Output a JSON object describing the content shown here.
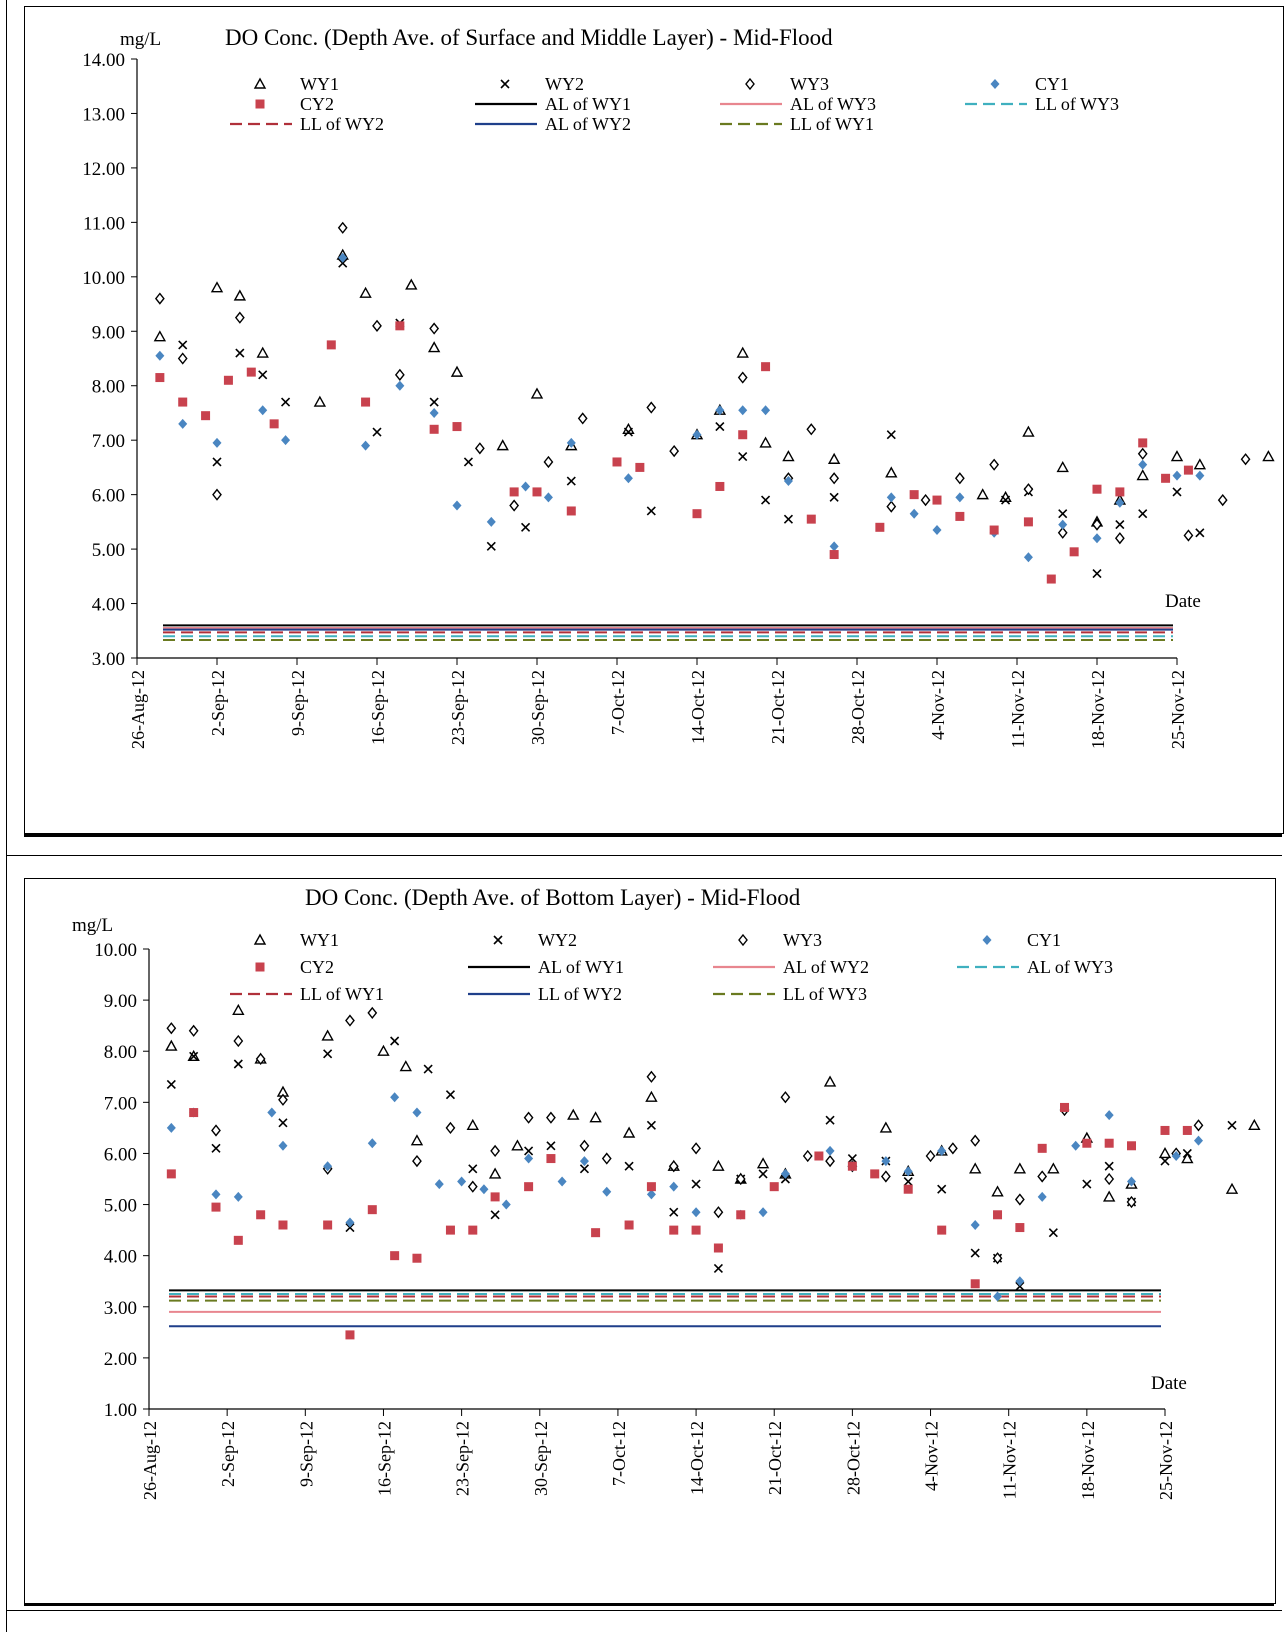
{
  "page": {
    "colors": {
      "WY1": "#000000",
      "WY2": "#000000",
      "WY3": "#000000",
      "CY1": "#4a86c1",
      "CY2": "#c8424e",
      "AL_black": "#000000",
      "AL_pink": "#e8868f",
      "AL_cyan": "#3fb0bf",
      "LL_red": "#b0303a",
      "LL_navy": "#1f3f8a",
      "LL_olive": "#6a7a20"
    }
  },
  "chart_data": [
    {
      "type": "scatter",
      "title": "DO Conc. (Depth Ave. of Surface and Middle Layer) - Mid-Flood",
      "ylabel": "mg/L",
      "xlabel": "Date",
      "ylim": [
        3,
        14
      ],
      "yticks": [
        "3.00",
        "4.00",
        "5.00",
        "6.00",
        "7.00",
        "8.00",
        "9.00",
        "10.00",
        "11.00",
        "12.00",
        "13.00",
        "14.00"
      ],
      "x_range_days": [
        0,
        91
      ],
      "xticks": [
        "26-Aug-12",
        "2-Sep-12",
        "9-Sep-12",
        "16-Sep-12",
        "23-Sep-12",
        "30-Sep-12",
        "7-Oct-12",
        "14-Oct-12",
        "21-Oct-12",
        "28-Oct-12",
        "4-Nov-12",
        "11-Nov-12",
        "18-Nov-12",
        "25-Nov-12"
      ],
      "legend_placement": "top",
      "legend": [
        {
          "label": "WY1",
          "marker": "triangle"
        },
        {
          "label": "WY2",
          "marker": "x"
        },
        {
          "label": "WY3",
          "marker": "diamond-open"
        },
        {
          "label": "CY1",
          "marker": "diamond-filled"
        },
        {
          "label": "CY2",
          "marker": "square"
        },
        {
          "label": "AL of WY1",
          "line": "AL_black",
          "dash": "solid"
        },
        {
          "label": "AL of WY3",
          "line": "AL_pink",
          "dash": "solid"
        },
        {
          "label": "LL of WY3",
          "line": "AL_cyan",
          "dash": "dash"
        },
        {
          "label": "LL of WY2",
          "line": "LL_red",
          "dash": "dash"
        },
        {
          "label": "AL of WY2",
          "line": "LL_navy",
          "dash": "solid"
        },
        {
          "label": "LL of WY1",
          "line": "LL_olive",
          "dash": "dash"
        }
      ],
      "lines": [
        {
          "name": "AL of WY1",
          "value": 3.6,
          "color": "AL_black",
          "dash": "solid"
        },
        {
          "name": "AL of WY3",
          "value": 3.55,
          "color": "AL_pink",
          "dash": "solid"
        },
        {
          "name": "AL of WY2",
          "value": 3.52,
          "color": "LL_navy",
          "dash": "solid"
        },
        {
          "name": "LL of WY2",
          "value": 3.47,
          "color": "LL_red",
          "dash": "dash"
        },
        {
          "name": "LL of WY3",
          "value": 3.4,
          "color": "AL_cyan",
          "dash": "dash"
        },
        {
          "name": "LL of WY1",
          "value": 3.33,
          "color": "LL_olive",
          "dash": "dash"
        }
      ],
      "series": [
        {
          "name": "WY1",
          "marker": "triangle",
          "x": [
            2,
            7,
            9,
            11,
            16,
            18,
            20,
            24,
            26,
            28,
            32,
            35,
            38,
            43,
            49,
            51,
            53,
            55,
            57,
            61,
            66,
            74,
            76,
            78,
            81,
            84,
            86,
            88,
            91,
            93,
            99
          ],
          "y": [
            8.9,
            9.8,
            9.65,
            8.6,
            7.7,
            10.4,
            9.7,
            9.85,
            8.7,
            8.25,
            6.9,
            7.85,
            6.9,
            7.2,
            7.1,
            7.55,
            8.6,
            6.95,
            6.7,
            6.65,
            6.4,
            6.0,
            5.95,
            7.15,
            6.5,
            5.5,
            5.9,
            6.35,
            6.7,
            6.55,
            6.7
          ]
        },
        {
          "name": "WY2",
          "marker": "x",
          "x": [
            4,
            7,
            9,
            11,
            13,
            18,
            21,
            23,
            26,
            29,
            31,
            34,
            38,
            43,
            45,
            51,
            53,
            55,
            57,
            61,
            66,
            76,
            78,
            81,
            84,
            86,
            88,
            91,
            93
          ],
          "y": [
            8.75,
            6.6,
            8.6,
            8.2,
            7.7,
            10.25,
            7.15,
            9.15,
            7.7,
            6.6,
            5.05,
            5.4,
            6.25,
            7.15,
            5.7,
            7.25,
            6.7,
            5.9,
            5.55,
            5.95,
            7.1,
            5.9,
            6.05,
            5.65,
            4.55,
            5.45,
            5.65,
            6.05,
            5.3
          ]
        },
        {
          "name": "WY3",
          "marker": "diamond-open",
          "x": [
            2,
            4,
            7,
            9,
            18,
            21,
            23,
            26,
            30,
            33,
            36,
            39,
            45,
            47,
            53,
            57,
            59,
            61,
            66,
            69,
            72,
            75,
            78,
            81,
            84,
            86,
            88,
            92,
            95,
            97
          ],
          "y": [
            9.6,
            8.5,
            6.0,
            9.25,
            10.9,
            9.1,
            8.2,
            9.05,
            6.85,
            5.8,
            6.6,
            7.4,
            7.6,
            6.8,
            8.15,
            6.3,
            7.2,
            6.3,
            5.78,
            5.9,
            6.3,
            6.55,
            6.1,
            5.3,
            5.45,
            5.2,
            6.75,
            5.25,
            5.9,
            6.65
          ]
        },
        {
          "name": "CY1",
          "marker": "diamond-filled",
          "x": [
            2,
            4,
            7,
            11,
            13,
            18,
            20,
            23,
            26,
            28,
            31,
            34,
            36,
            38,
            43,
            49,
            51,
            53,
            55,
            57,
            61,
            66,
            68,
            70,
            72,
            75,
            78,
            81,
            84,
            86,
            88,
            91,
            93
          ],
          "y": [
            8.55,
            7.3,
            6.95,
            7.55,
            7.0,
            10.35,
            6.9,
            8.0,
            7.5,
            5.8,
            5.5,
            6.15,
            5.95,
            6.95,
            6.3,
            7.1,
            7.55,
            7.55,
            7.55,
            6.25,
            5.05,
            5.95,
            5.65,
            5.35,
            5.95,
            5.3,
            4.85,
            5.45,
            5.2,
            5.85,
            6.55,
            6.35,
            6.35
          ]
        },
        {
          "name": "CY2",
          "marker": "square",
          "x": [
            2,
            4,
            6,
            8,
            10,
            12,
            17,
            20,
            23,
            26,
            28,
            33,
            35,
            38,
            42,
            44,
            49,
            51,
            53,
            55,
            59,
            61,
            65,
            68,
            70,
            72,
            75,
            78,
            80,
            82,
            84,
            86,
            88,
            90,
            92
          ],
          "y": [
            8.15,
            7.7,
            7.45,
            8.1,
            8.25,
            7.3,
            8.75,
            7.7,
            9.1,
            7.2,
            7.25,
            6.05,
            6.05,
            5.7,
            6.6,
            6.5,
            5.65,
            6.15,
            7.1,
            8.35,
            5.55,
            4.9,
            5.4,
            6.0,
            5.9,
            5.6,
            5.35,
            5.5,
            4.45,
            4.95,
            6.1,
            6.05,
            6.95,
            6.3,
            6.45
          ]
        }
      ]
    },
    {
      "type": "scatter",
      "title": "DO Conc. (Depth Ave. of Bottom Layer) - Mid-Flood",
      "ylabel": "mg/L",
      "xlabel": "Date",
      "ylim": [
        1,
        10
      ],
      "yticks": [
        "1.00",
        "2.00",
        "3.00",
        "4.00",
        "5.00",
        "6.00",
        "7.00",
        "8.00",
        "9.00",
        "10.00"
      ],
      "x_range_days": [
        0,
        91
      ],
      "xticks": [
        "26-Aug-12",
        "2-Sep-12",
        "9-Sep-12",
        "16-Sep-12",
        "23-Sep-12",
        "30-Sep-12",
        "7-Oct-12",
        "14-Oct-12",
        "21-Oct-12",
        "28-Oct-12",
        "4-Nov-12",
        "11-Nov-12",
        "18-Nov-12",
        "25-Nov-12"
      ],
      "legend_placement": "top",
      "legend": [
        {
          "label": "WY1",
          "marker": "triangle"
        },
        {
          "label": "WY2",
          "marker": "x"
        },
        {
          "label": "WY3",
          "marker": "diamond-open"
        },
        {
          "label": "CY1",
          "marker": "diamond-filled"
        },
        {
          "label": "CY2",
          "marker": "square"
        },
        {
          "label": "AL of WY1",
          "line": "AL_black",
          "dash": "solid"
        },
        {
          "label": "AL of WY2",
          "line": "AL_pink",
          "dash": "solid"
        },
        {
          "label": "AL of WY3",
          "line": "AL_cyan",
          "dash": "dash"
        },
        {
          "label": "LL of WY1",
          "line": "LL_red",
          "dash": "dash"
        },
        {
          "label": "LL of WY2",
          "line": "LL_navy",
          "dash": "solid"
        },
        {
          "label": "LL of WY3",
          "line": "LL_olive",
          "dash": "dash"
        }
      ],
      "lines": [
        {
          "name": "AL of WY1",
          "value": 3.32,
          "color": "AL_black",
          "dash": "solid"
        },
        {
          "name": "AL of WY3",
          "value": 3.25,
          "color": "AL_cyan",
          "dash": "dash"
        },
        {
          "name": "LL of WY1",
          "value": 3.2,
          "color": "LL_red",
          "dash": "dash"
        },
        {
          "name": "LL of WY3",
          "value": 3.12,
          "color": "LL_olive",
          "dash": "dash"
        },
        {
          "name": "AL of WY2",
          "value": 2.9,
          "color": "AL_pink",
          "dash": "solid"
        },
        {
          "name": "LL of WY2",
          "value": 2.62,
          "color": "LL_navy",
          "dash": "solid"
        }
      ],
      "series": [
        {
          "name": "WY1",
          "marker": "triangle",
          "x": [
            2,
            4,
            8,
            10,
            12,
            16,
            21,
            23,
            24,
            29,
            31,
            33,
            38,
            40,
            43,
            45,
            47,
            51,
            53,
            55,
            57,
            61,
            66,
            68,
            71,
            74,
            76,
            78,
            81,
            84,
            86,
            88,
            91,
            93,
            97,
            99
          ],
          "y": [
            8.1,
            7.9,
            8.8,
            7.85,
            7.2,
            8.3,
            8.0,
            7.7,
            6.25,
            6.55,
            5.6,
            6.15,
            6.75,
            6.7,
            6.4,
            7.1,
            5.75,
            5.75,
            5.5,
            5.8,
            5.6,
            7.4,
            6.5,
            5.65,
            6.05,
            5.7,
            5.25,
            5.7,
            5.7,
            6.3,
            5.15,
            5.4,
            6.0,
            5.9,
            5.3,
            6.55
          ]
        },
        {
          "name": "WY2",
          "marker": "x",
          "x": [
            2,
            4,
            6,
            8,
            12,
            16,
            18,
            22,
            25,
            27,
            29,
            31,
            34,
            36,
            39,
            43,
            45,
            47,
            49,
            51,
            53,
            55,
            57,
            61,
            63,
            66,
            68,
            71,
            74,
            76,
            78,
            81,
            84,
            86,
            88,
            91,
            93,
            97
          ],
          "y": [
            7.35,
            7.9,
            6.1,
            7.75,
            6.6,
            7.95,
            4.55,
            8.2,
            7.65,
            7.15,
            5.7,
            4.8,
            6.05,
            6.15,
            5.7,
            5.75,
            6.55,
            4.85,
            5.4,
            3.75,
            5.5,
            5.6,
            5.5,
            6.65,
            5.9,
            5.85,
            5.45,
            5.3,
            4.05,
            3.95,
            3.4,
            4.45,
            5.4,
            5.75,
            5.05,
            5.85,
            6.0,
            6.55
          ]
        },
        {
          "name": "WY3",
          "marker": "diamond-open",
          "x": [
            2,
            4,
            6,
            8,
            10,
            12,
            16,
            18,
            20,
            24,
            27,
            29,
            31,
            34,
            36,
            39,
            41,
            45,
            47,
            49,
            51,
            53,
            57,
            59,
            61,
            63,
            66,
            70,
            72,
            74,
            76,
            78,
            80,
            82,
            86,
            88,
            92,
            94
          ],
          "y": [
            8.45,
            8.4,
            6.45,
            8.2,
            7.85,
            7.05,
            5.7,
            8.6,
            8.75,
            5.85,
            6.5,
            5.35,
            6.05,
            6.7,
            6.7,
            6.15,
            5.9,
            7.5,
            5.75,
            6.1,
            4.85,
            5.5,
            7.1,
            5.95,
            5.85,
            5.75,
            5.55,
            5.95,
            6.1,
            6.25,
            3.95,
            5.1,
            5.55,
            6.85,
            5.5,
            5.05,
            6.0,
            6.55
          ]
        },
        {
          "name": "CY1",
          "marker": "diamond-filled",
          "x": [
            2,
            4,
            6,
            8,
            11,
            12,
            16,
            18,
            20,
            22,
            24,
            26,
            28,
            30,
            32,
            34,
            37,
            39,
            41,
            45,
            47,
            49,
            53,
            55,
            57,
            61,
            63,
            66,
            68,
            71,
            74,
            76,
            78,
            80,
            83,
            86,
            88,
            92,
            94
          ],
          "y": [
            6.5,
            6.8,
            5.2,
            5.15,
            6.8,
            6.15,
            5.75,
            4.65,
            6.2,
            7.1,
            6.8,
            5.4,
            5.45,
            5.3,
            5.0,
            5.9,
            5.45,
            5.85,
            5.25,
            5.2,
            5.35,
            4.85,
            4.8,
            4.85,
            5.6,
            6.05,
            5.75,
            5.85,
            5.65,
            6.05,
            4.6,
            3.2,
            3.5,
            5.15,
            6.15,
            6.75,
            5.45,
            5.95,
            6.25
          ]
        },
        {
          "name": "CY2",
          "marker": "square",
          "x": [
            2,
            4,
            6,
            8,
            10,
            12,
            16,
            18,
            20,
            22,
            24,
            27,
            29,
            31,
            34,
            36,
            40,
            43,
            45,
            47,
            49,
            51,
            53,
            56,
            60,
            63,
            65,
            68,
            71,
            74,
            76,
            78,
            80,
            82,
            84,
            86,
            88,
            91,
            93
          ],
          "y": [
            5.6,
            6.8,
            4.95,
            4.3,
            4.8,
            4.6,
            4.6,
            2.45,
            4.9,
            4.0,
            3.95,
            4.5,
            4.5,
            5.15,
            5.35,
            5.9,
            4.45,
            4.6,
            5.35,
            4.5,
            4.5,
            4.15,
            4.8,
            5.35,
            5.95,
            5.75,
            5.6,
            5.3,
            4.5,
            3.45,
            4.8,
            4.55,
            6.1,
            6.9,
            6.2,
            6.2,
            6.15,
            6.45,
            6.45
          ]
        }
      ]
    }
  ]
}
